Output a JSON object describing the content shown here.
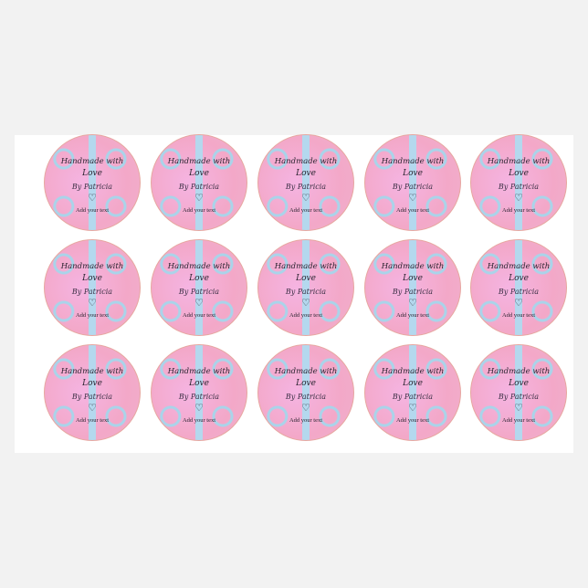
{
  "sticker": {
    "line1": "Handmade with",
    "line2": "Love",
    "byline": "By Patricia",
    "heart": "♡",
    "footer": "Add your text"
  },
  "layout_grid": {
    "rows": 3,
    "columns": 5
  },
  "colors": {
    "pink": "#f3a8c8",
    "blue": "#a9d4ea",
    "border": "#e7a7a0"
  }
}
